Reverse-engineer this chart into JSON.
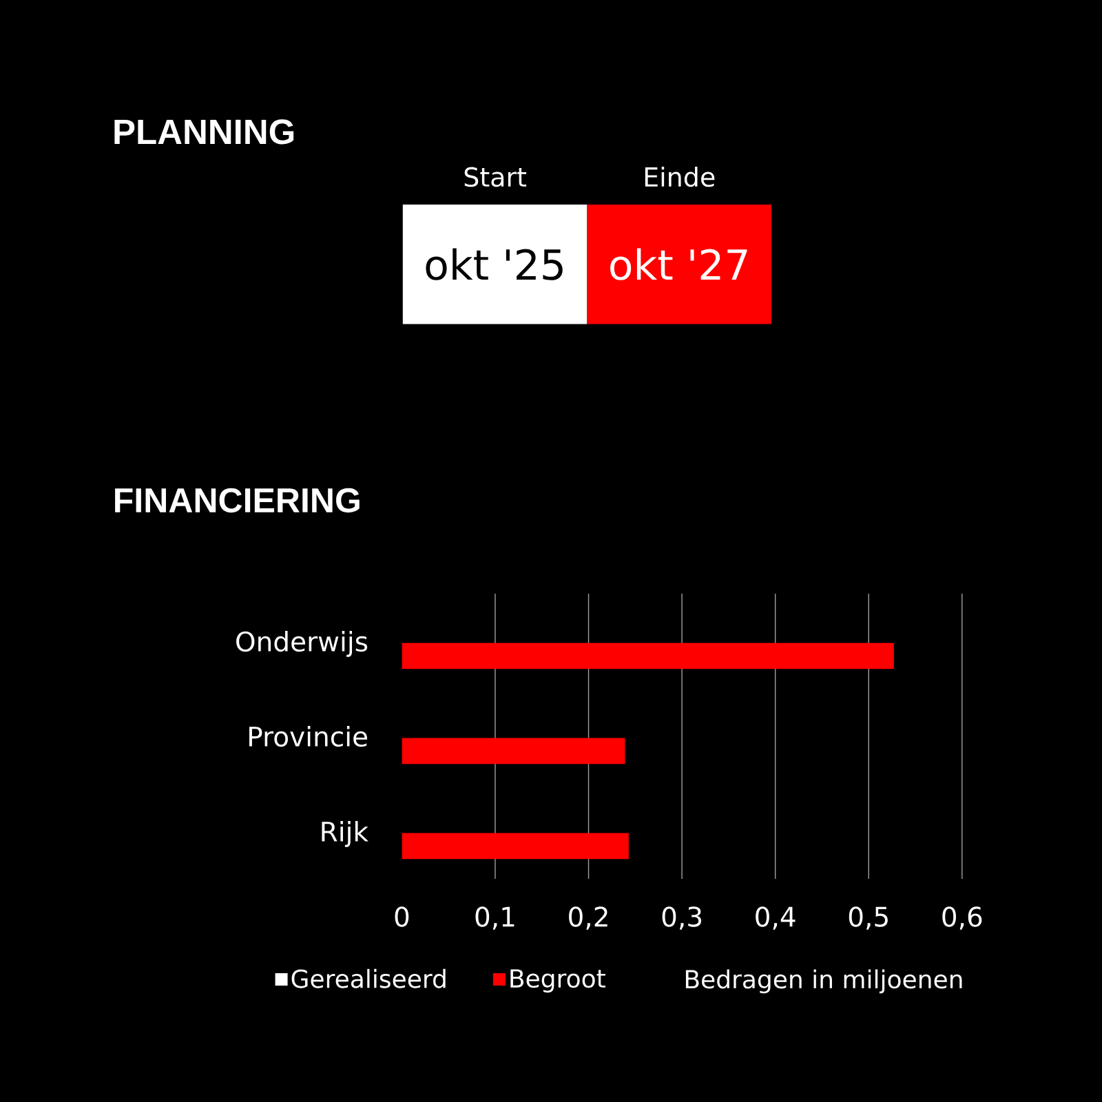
{
  "chart_data": [
    {
      "type": "other",
      "title": "PLANNING",
      "categories": [
        "Start",
        "Einde"
      ],
      "annotations": [
        "okt '25",
        "okt '27"
      ],
      "colors": [
        "#ffffff",
        "#ff0000"
      ]
    },
    {
      "type": "bar",
      "orientation": "horizontal",
      "title": "FINANCIERING",
      "categories": [
        "Onderwijs",
        "Provincie",
        "Rijk"
      ],
      "series": [
        {
          "name": "Gerealiseerd",
          "color": "#ffffff",
          "values": [
            null,
            null,
            null
          ]
        },
        {
          "name": "Begroot",
          "color": "#ff0000",
          "values": [
            0.527,
            0.239,
            0.243
          ]
        }
      ],
      "xlim": [
        0,
        0.6
      ],
      "xticks": [
        0,
        {
          "value": 0.1,
          "label": "0,1"
        },
        {
          "value": 0.2,
          "label": "0,2"
        },
        {
          "value": 0.3,
          "label": "0,3"
        },
        {
          "value": 0.4,
          "label": "0,4"
        },
        {
          "value": 0.5,
          "label": "0,5"
        },
        {
          "value": 0.6,
          "label": "0,6"
        }
      ],
      "grid": "x",
      "legend": "bottom",
      "annotations": [
        "Bedragen in miljoenen"
      ]
    }
  ]
}
